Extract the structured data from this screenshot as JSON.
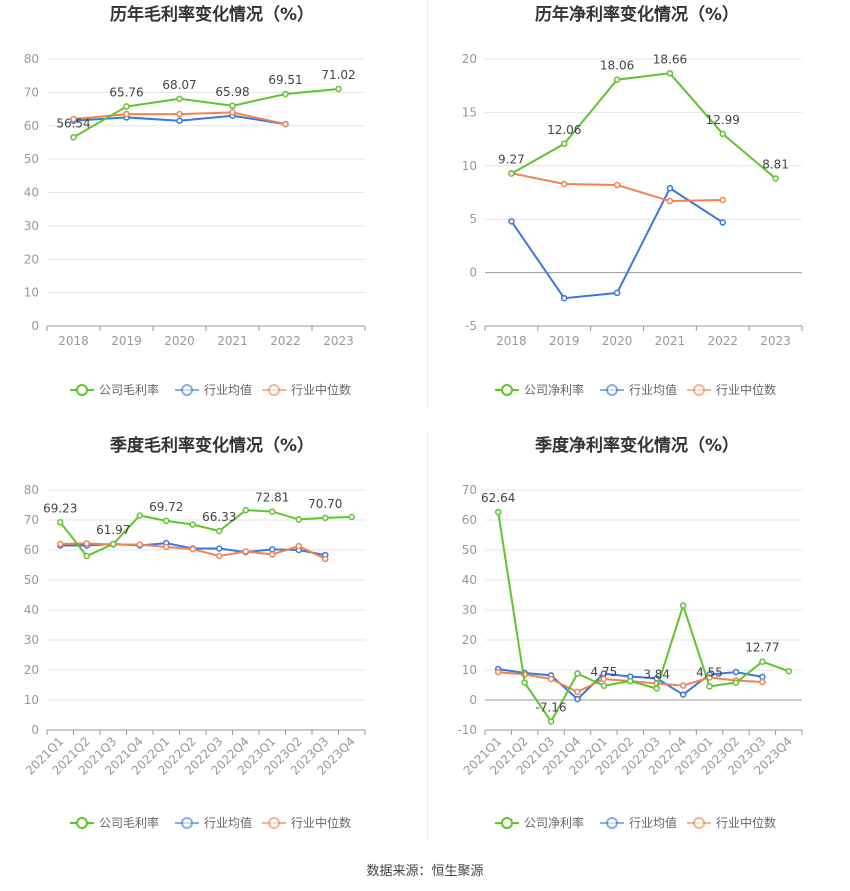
{
  "footer": "数据来源：恒生聚源",
  "legend": [
    "公司毛利率",
    "行业均值",
    "行业中位数"
  ],
  "legend_net": [
    "公司净利率",
    "行业均值",
    "行业中位数"
  ],
  "colors": {
    "company": "#5fc52e",
    "mean": "#3d76dd",
    "median": "#f08352"
  },
  "chart_data": [
    {
      "type": "line",
      "title": "历年毛利率变化情况（%）",
      "categories": [
        "2018",
        "2019",
        "2020",
        "2021",
        "2022",
        "2023"
      ],
      "ylim": [
        0,
        80
      ],
      "yticks": [
        0,
        10,
        20,
        30,
        40,
        50,
        60,
        70,
        80
      ],
      "series": [
        {
          "name": "公司毛利率",
          "values": [
            56.54,
            65.76,
            68.07,
            65.98,
            69.51,
            71.02
          ]
        },
        {
          "name": "行业均值",
          "values": [
            61.5,
            62.5,
            61.5,
            63.0,
            60.5,
            null
          ]
        },
        {
          "name": "行业中位数",
          "values": [
            62.0,
            63.5,
            63.5,
            64.0,
            60.5,
            null
          ]
        }
      ],
      "labels": [
        {
          "i": 0,
          "text": "56.54"
        },
        {
          "i": 1,
          "text": "65.76"
        },
        {
          "i": 2,
          "text": "68.07"
        },
        {
          "i": 3,
          "text": "65.98"
        },
        {
          "i": 4,
          "text": "69.51"
        },
        {
          "i": 5,
          "text": "71.02"
        }
      ]
    },
    {
      "type": "line",
      "title": "历年净利率变化情况（%）",
      "categories": [
        "2018",
        "2019",
        "2020",
        "2021",
        "2022",
        "2023"
      ],
      "ylim": [
        -5,
        20
      ],
      "yticks": [
        -5,
        0,
        5,
        10,
        15,
        20
      ],
      "series": [
        {
          "name": "公司净利率",
          "values": [
            9.27,
            12.06,
            18.06,
            18.66,
            12.99,
            8.81
          ]
        },
        {
          "name": "行业均值",
          "values": [
            4.8,
            -2.4,
            -1.9,
            7.9,
            4.7,
            null
          ]
        },
        {
          "name": "行业中位数",
          "values": [
            9.3,
            8.3,
            8.2,
            6.7,
            6.8,
            null
          ]
        }
      ],
      "labels": [
        {
          "i": 0,
          "text": "9.27"
        },
        {
          "i": 1,
          "text": "12.06"
        },
        {
          "i": 2,
          "text": "18.06"
        },
        {
          "i": 3,
          "text": "18.66"
        },
        {
          "i": 4,
          "text": "12.99"
        },
        {
          "i": 5,
          "text": "8.81"
        }
      ]
    },
    {
      "type": "line",
      "title": "季度毛利率变化情况（%）",
      "categories": [
        "2021Q1",
        "2021Q2",
        "2021Q3",
        "2021Q4",
        "2022Q1",
        "2022Q2",
        "2022Q3",
        "2022Q4",
        "2023Q1",
        "2023Q2",
        "2023Q3",
        "2023Q4"
      ],
      "ylim": [
        0,
        80
      ],
      "yticks": [
        0,
        10,
        20,
        30,
        40,
        50,
        60,
        70,
        80
      ],
      "series": [
        {
          "name": "公司毛利率",
          "values": [
            69.23,
            58.0,
            61.97,
            71.5,
            69.72,
            68.5,
            66.33,
            73.3,
            72.81,
            70.2,
            70.7,
            71.0
          ]
        },
        {
          "name": "行业均值",
          "values": [
            61.5,
            61.5,
            62.0,
            61.5,
            62.3,
            60.5,
            60.5,
            59.3,
            60.2,
            60.0,
            58.3,
            null
          ]
        },
        {
          "name": "行业中位数",
          "values": [
            62.0,
            62.2,
            61.8,
            61.8,
            61.0,
            60.3,
            58.0,
            59.5,
            58.5,
            61.3,
            57.0,
            null
          ]
        }
      ],
      "labels": [
        {
          "i": 0,
          "text": "69.23"
        },
        {
          "i": 2,
          "text": "61.97"
        },
        {
          "i": 4,
          "text": "69.72"
        },
        {
          "i": 6,
          "text": "66.33"
        },
        {
          "i": 8,
          "text": "72.81"
        },
        {
          "i": 10,
          "text": "70.70"
        }
      ]
    },
    {
      "type": "line",
      "title": "季度净利率变化情况（%）",
      "categories": [
        "2021Q1",
        "2021Q2",
        "2021Q3",
        "2021Q4",
        "2022Q1",
        "2022Q2",
        "2022Q3",
        "2022Q4",
        "2023Q1",
        "2023Q2",
        "2023Q3",
        "2023Q4"
      ],
      "ylim": [
        -10,
        70
      ],
      "yticks": [
        -10,
        0,
        10,
        20,
        30,
        40,
        50,
        60,
        70
      ],
      "series": [
        {
          "name": "公司净利率",
          "values": [
            62.64,
            5.8,
            -7.16,
            8.8,
            4.75,
            6.3,
            3.84,
            31.5,
            4.55,
            5.8,
            12.77,
            9.6
          ]
        },
        {
          "name": "行业均值",
          "values": [
            10.3,
            9.0,
            8.2,
            0.3,
            8.8,
            7.8,
            7.2,
            1.8,
            8.5,
            9.3,
            7.7,
            null
          ]
        },
        {
          "name": "行业中位数",
          "values": [
            9.3,
            8.5,
            7.0,
            2.7,
            7.0,
            6.3,
            5.5,
            4.8,
            7.5,
            6.5,
            6.0,
            null
          ]
        }
      ],
      "labels": [
        {
          "i": 0,
          "text": "62.64"
        },
        {
          "i": 2,
          "text": "-7.16"
        },
        {
          "i": 4,
          "text": "4.75"
        },
        {
          "i": 6,
          "text": "3.84"
        },
        {
          "i": 8,
          "text": "4.55"
        },
        {
          "i": 10,
          "text": "12.77"
        }
      ]
    }
  ]
}
